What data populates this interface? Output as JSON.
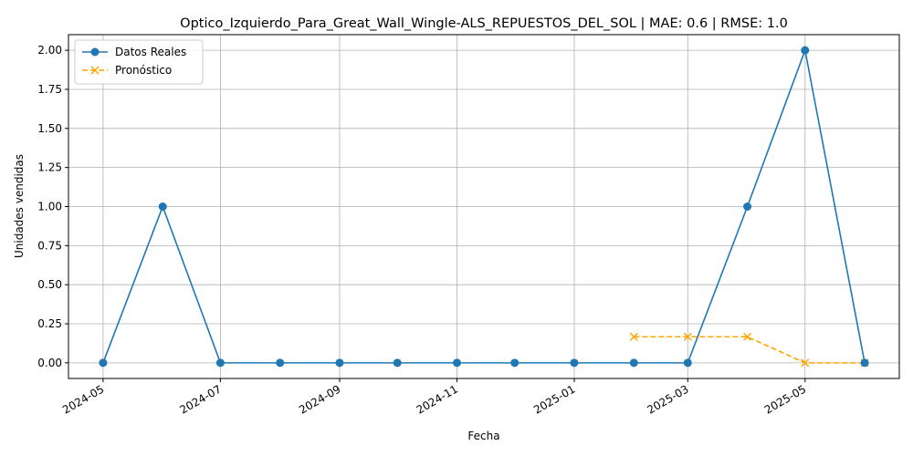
{
  "chart_data": {
    "type": "line",
    "title": "Optico_Izquierdo_Para_Great_Wall_Wingle-ALS_REPUESTOS_DEL_SOL | MAE: 0.6 | RMSE: 1.0",
    "xlabel": "Fecha",
    "ylabel": "Unidades vendidas",
    "x_ticks": [
      "2024-05",
      "2024-07",
      "2024-09",
      "2024-11",
      "2025-01",
      "2025-03",
      "2025-05"
    ],
    "y_ticks": [
      "0.00",
      "0.25",
      "0.50",
      "0.75",
      "1.00",
      "1.25",
      "1.50",
      "1.75",
      "2.00"
    ],
    "xlim": [
      "2024-04-13",
      "2025-06-19"
    ],
    "ylim": [
      -0.1,
      2.1
    ],
    "grid": true,
    "legend_position": "top-left",
    "series": [
      {
        "name": "Datos Reales",
        "color": "#1f77b4",
        "marker": "circle",
        "linestyle": "solid",
        "x": [
          "2024-05-01",
          "2024-06-01",
          "2024-07-01",
          "2024-08-01",
          "2024-09-01",
          "2024-10-01",
          "2024-11-01",
          "2024-12-01",
          "2025-01-01",
          "2025-02-01",
          "2025-03-01",
          "2025-04-01",
          "2025-05-01",
          "2025-06-01"
        ],
        "values": [
          0,
          1,
          0,
          0,
          0,
          0,
          0,
          0,
          0,
          0,
          0,
          1,
          2,
          0
        ]
      },
      {
        "name": "Pronóstico",
        "color": "#ffa500",
        "marker": "x",
        "linestyle": "dashed",
        "x": [
          "2025-02-01",
          "2025-03-01",
          "2025-04-01",
          "2025-05-01",
          "2025-06-01"
        ],
        "values": [
          0.167,
          0.167,
          0.167,
          0,
          0
        ]
      }
    ]
  }
}
